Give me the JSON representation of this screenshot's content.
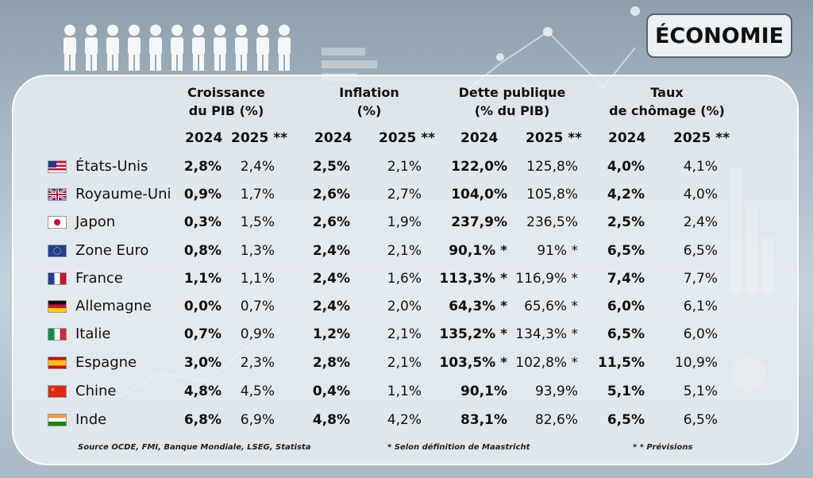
{
  "badge": "ÉCONOMIE",
  "headers": {
    "gdp": [
      "Croissance",
      "du PIB (%)"
    ],
    "inflation": [
      "Inflation",
      "(%)"
    ],
    "debt": [
      "Dette publique",
      "(% du PIB)"
    ],
    "unemployment": [
      "Taux",
      "de chômage (%)"
    ]
  },
  "years": {
    "gdp": [
      "2024",
      "2025 **"
    ],
    "inflation": [
      "2024",
      "2025 **"
    ],
    "debt": [
      "2024",
      "2025 **"
    ],
    "unemployment": [
      "2024",
      "2025 **"
    ]
  },
  "rows": [
    {
      "country": "États-Unis",
      "flag": "us-flag",
      "gdp24": "2,8%",
      "gdp25": "2,4%",
      "inf24": "2,5%",
      "inf25": "2,1%",
      "debt24": "122,0%",
      "debt25": "125,8%",
      "unemp24": "4,0%",
      "unemp25": "4,1%"
    },
    {
      "country": "Royaume-Uni",
      "flag": "uk-flag",
      "gdp24": "0,9%",
      "gdp25": "1,7%",
      "inf24": "2,6%",
      "inf25": "2,7%",
      "debt24": "104,0%",
      "debt25": "105,8%",
      "unemp24": "4,2%",
      "unemp25": "4,0%"
    },
    {
      "country": "Japon",
      "flag": "japan-flag",
      "gdp24": "0,3%",
      "gdp25": "1,5%",
      "inf24": "2,6%",
      "inf25": "1,9%",
      "debt24": "237,9%",
      "debt25": "236,5%",
      "unemp24": "2,5%",
      "unemp25": "2,4%"
    },
    {
      "country": "Zone Euro",
      "flag": "eu-flag",
      "gdp24": "0,8%",
      "gdp25": "1,3%",
      "inf24": "2,4%",
      "inf25": "2,1%",
      "debt24": "90,1% *",
      "debt25": "91% *",
      "unemp24": "6,5%",
      "unemp25": "6,5%"
    },
    {
      "country": "France",
      "flag": "france-flag",
      "gdp24": "1,1%",
      "gdp25": "1,1%",
      "inf24": "2,4%",
      "inf25": "1,6%",
      "debt24": "113,3% *",
      "debt25": "116,9% *",
      "unemp24": "7,4%",
      "unemp25": "7,7%"
    },
    {
      "country": "Allemagne",
      "flag": "germany-flag",
      "gdp24": "0,0%",
      "gdp25": "0,7%",
      "inf24": "2,4%",
      "inf25": "2,0%",
      "debt24": "64,3% *",
      "debt25": "65,6% *",
      "unemp24": "6,0%",
      "unemp25": "6,1%"
    },
    {
      "country": "Italie",
      "flag": "italy-flag",
      "gdp24": "0,7%",
      "gdp25": "0,9%",
      "inf24": "1,2%",
      "inf25": "2,1%",
      "debt24": "135,2% *",
      "debt25": "134,3% *",
      "unemp24": "6,5%",
      "unemp25": "6,0%"
    },
    {
      "country": "Espagne",
      "flag": "spain-flag",
      "gdp24": "3,0%",
      "gdp25": "2,3%",
      "inf24": "2,8%",
      "inf25": "2,1%",
      "debt24": "103,5% *",
      "debt25": "102,8% *",
      "unemp24": "11,5%",
      "unemp25": "10,9%"
    },
    {
      "country": "Chine",
      "flag": "china-flag",
      "gdp24": "4,8%",
      "gdp25": "4,5%",
      "inf24": "0,4%",
      "inf25": "1,1%",
      "debt24": "90,1%",
      "debt25": "93,9%",
      "unemp24": "5,1%",
      "unemp25": "5,1%"
    },
    {
      "country": "Inde",
      "flag": "india-flag",
      "gdp24": "6,8%",
      "gdp25": "6,9%",
      "inf24": "4,8%",
      "inf25": "4,2%",
      "debt24": "83,1%",
      "debt25": "82,6%",
      "unemp24": "6,5%",
      "unemp25": "6,5%"
    }
  ],
  "footnotes": {
    "source": "Source OCDE, FMI, Banque Mondiale, LSEG, Statista",
    "maastricht": "* Selon définition de Maastricht",
    "forecast": "* * Prévisions"
  }
}
